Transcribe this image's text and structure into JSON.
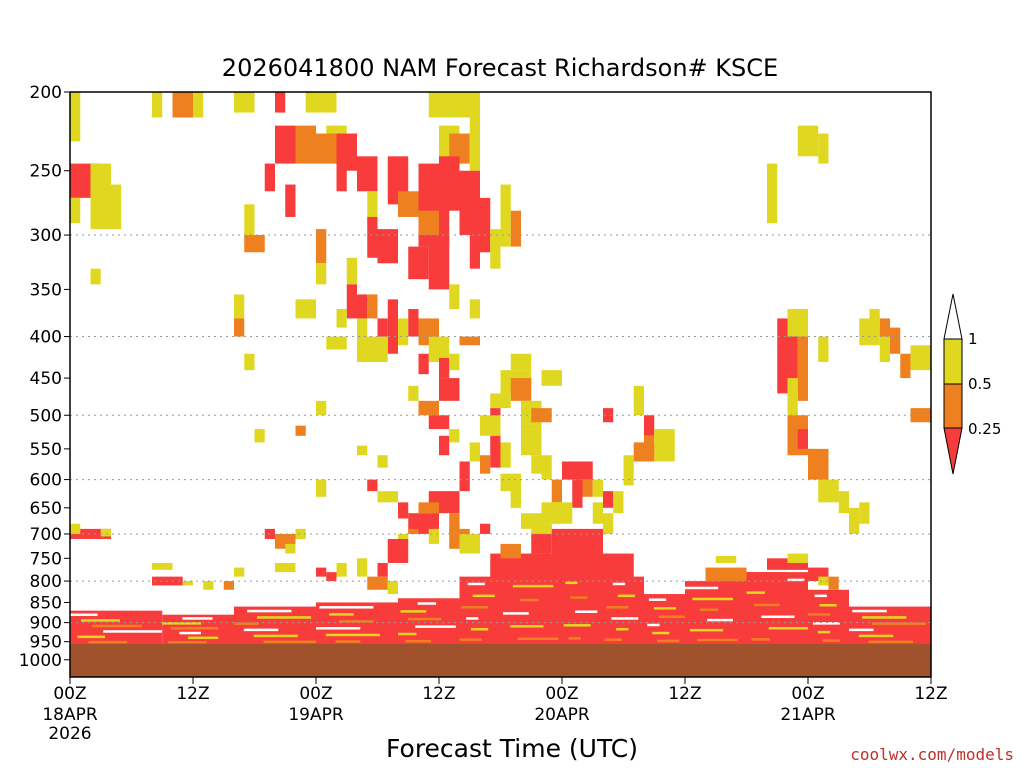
{
  "chart_data": {
    "type": "heatmap",
    "title": "2026041800 NAM Forecast Richardson# KSCE",
    "xlabel": "Forecast Time (UTC)",
    "ylabel": "",
    "credit": "coolwx.com/models",
    "x_range_hours": [
      0,
      84
    ],
    "x_ticks": [
      {
        "hour": 0,
        "label": "00Z",
        "date": "18APR",
        "year": "2026"
      },
      {
        "hour": 12,
        "label": "12Z",
        "date": "",
        "year": ""
      },
      {
        "hour": 24,
        "label": "00Z",
        "date": "19APR",
        "year": ""
      },
      {
        "hour": 36,
        "label": "12Z",
        "date": "",
        "year": ""
      },
      {
        "hour": 48,
        "label": "00Z",
        "date": "20APR",
        "year": ""
      },
      {
        "hour": 60,
        "label": "12Z",
        "date": "",
        "year": ""
      },
      {
        "hour": 72,
        "label": "00Z",
        "date": "21APR",
        "year": ""
      },
      {
        "hour": 84,
        "label": "12Z",
        "date": "",
        "year": ""
      }
    ],
    "y_axis": "pressure_hPa_log",
    "y_range": [
      1050,
      200
    ],
    "y_ticks": [
      200,
      250,
      300,
      350,
      400,
      450,
      500,
      550,
      600,
      650,
      700,
      750,
      800,
      850,
      900,
      950,
      1000
    ],
    "y_gridlines": [
      300,
      400,
      500,
      600,
      700,
      800,
      900
    ],
    "grid_style": "dotted",
    "legend": {
      "placement": "right",
      "thresholds": [
        "1",
        "0.5",
        "0.25"
      ],
      "classes": [
        {
          "name": "0.5-1",
          "color": "#e0d820"
        },
        {
          "name": "0.25-0.5",
          "color": "#ee8020"
        },
        {
          "name": "<0.25",
          "color": "#f83c3c"
        }
      ],
      "upper_arrow_color": "#ffffff"
    },
    "ground_pressure": 955,
    "ground_color": "#a0522d",
    "class_colors": {
      "Y": "#e0d820",
      "O": "#ee8020",
      "R": "#f83c3c"
    },
    "cells": [
      [
        "Y",
        0,
        1,
        200,
        230
      ],
      [
        "Y",
        8,
        9,
        200,
        215
      ],
      [
        "O",
        10,
        12,
        200,
        215
      ],
      [
        "Y",
        12,
        13,
        200,
        215
      ],
      [
        "Y",
        16,
        18,
        200,
        212
      ],
      [
        "R",
        20,
        21,
        200,
        212
      ],
      [
        "Y",
        23,
        24,
        200,
        212
      ],
      [
        "Y",
        24,
        26,
        200,
        212
      ],
      [
        "Y",
        35,
        40,
        200,
        215
      ],
      [
        "R",
        20,
        22,
        220,
        245
      ],
      [
        "O",
        22,
        24,
        220,
        245
      ],
      [
        "Y",
        25,
        27,
        220,
        245
      ],
      [
        "R",
        26,
        28,
        225,
        250
      ],
      [
        "O",
        24,
        26,
        225,
        245
      ],
      [
        "Y",
        36,
        38,
        220,
        245
      ],
      [
        "O",
        37,
        39,
        225,
        245
      ],
      [
        "Y",
        39,
        40,
        215,
        250
      ],
      [
        "Y",
        71,
        73,
        220,
        240
      ],
      [
        "Y",
        73,
        74,
        225,
        245
      ],
      [
        "R",
        0,
        3,
        245,
        270
      ],
      [
        "Y",
        0,
        1,
        270,
        290
      ],
      [
        "Y",
        2,
        4,
        245,
        295
      ],
      [
        "Y",
        4,
        5,
        260,
        295
      ],
      [
        "R",
        19,
        20,
        245,
        265
      ],
      [
        "R",
        28,
        30,
        240,
        265
      ],
      [
        "Y",
        29,
        30,
        265,
        290
      ],
      [
        "R",
        31,
        33,
        240,
        275
      ],
      [
        "R",
        26,
        27,
        245,
        265
      ],
      [
        "R",
        34,
        37,
        245,
        310
      ],
      [
        "O",
        32,
        34,
        265,
        285
      ],
      [
        "R",
        29,
        30,
        285,
        320
      ],
      [
        "R",
        30,
        32,
        295,
        325
      ],
      [
        "R",
        33,
        35,
        310,
        340
      ],
      [
        "O",
        34,
        36,
        280,
        300
      ],
      [
        "R",
        35,
        37,
        300,
        350
      ],
      [
        "R",
        36,
        38,
        240,
        280
      ],
      [
        "R",
        38,
        40,
        250,
        300
      ],
      [
        "R",
        40,
        41,
        270,
        315
      ],
      [
        "Y",
        42,
        43,
        260,
        310
      ],
      [
        "O",
        43,
        44,
        280,
        310
      ],
      [
        "R",
        39,
        40,
        300,
        330
      ],
      [
        "Y",
        41,
        42,
        295,
        330
      ],
      [
        "Y",
        68,
        69,
        245,
        290
      ],
      [
        "O",
        17,
        19,
        300,
        315
      ],
      [
        "Y",
        17,
        18,
        275,
        300
      ],
      [
        "R",
        21,
        22,
        260,
        285
      ],
      [
        "O",
        24,
        25,
        295,
        325
      ],
      [
        "Y",
        24,
        25,
        325,
        345
      ],
      [
        "Y",
        27,
        28,
        320,
        345
      ],
      [
        "R",
        27,
        28,
        345,
        380
      ],
      [
        "Y",
        28,
        29,
        380,
        400
      ],
      [
        "Y",
        2,
        3,
        330,
        345
      ],
      [
        "Y",
        16,
        17,
        355,
        380
      ],
      [
        "O",
        16,
        17,
        380,
        400
      ],
      [
        "Y",
        22,
        24,
        360,
        380
      ],
      [
        "Y",
        26,
        27,
        370,
        390
      ],
      [
        "R",
        28,
        29,
        355,
        380
      ],
      [
        "O",
        29,
        30,
        355,
        380
      ],
      [
        "R",
        30,
        31,
        380,
        400
      ],
      [
        "R",
        31,
        32,
        360,
        420
      ],
      [
        "Y",
        32,
        33,
        380,
        410
      ],
      [
        "R",
        33,
        34,
        370,
        400
      ],
      [
        "O",
        34,
        36,
        380,
        410
      ],
      [
        "Y",
        35,
        37,
        400,
        430
      ],
      [
        "Y",
        37,
        38,
        345,
        370
      ],
      [
        "Y",
        39,
        40,
        360,
        380
      ],
      [
        "O",
        38,
        40,
        400,
        410
      ],
      [
        "R",
        34,
        35,
        420,
        445
      ],
      [
        "R",
        36,
        37,
        425,
        450
      ],
      [
        "Y",
        37,
        38,
        420,
        440
      ],
      [
        "Y",
        17,
        18,
        420,
        440
      ],
      [
        "Y",
        25,
        27,
        400,
        415
      ],
      [
        "Y",
        28,
        31,
        400,
        430
      ],
      [
        "R",
        36,
        38,
        450,
        480
      ],
      [
        "R",
        35,
        36,
        490,
        500
      ],
      [
        "O",
        34,
        36,
        480,
        500
      ],
      [
        "Y",
        33,
        34,
        460,
        480
      ],
      [
        "R",
        35,
        37,
        500,
        520
      ],
      [
        "R",
        36,
        37,
        530,
        560
      ],
      [
        "Y",
        37,
        38,
        520,
        540
      ],
      [
        "Y",
        24,
        25,
        480,
        500
      ],
      [
        "O",
        22,
        23,
        515,
        530
      ],
      [
        "Y",
        18,
        19,
        520,
        540
      ],
      [
        "Y",
        43,
        45,
        420,
        440
      ],
      [
        "Y",
        42,
        45,
        440,
        470
      ],
      [
        "O",
        43,
        45,
        450,
        480
      ],
      [
        "Y",
        41,
        43,
        470,
        490
      ],
      [
        "R",
        41,
        42,
        490,
        510
      ],
      [
        "Y",
        44,
        46,
        480,
        520
      ],
      [
        "O",
        45,
        47,
        490,
        510
      ],
      [
        "Y",
        46,
        48,
        440,
        460
      ],
      [
        "Y",
        40,
        42,
        500,
        530
      ],
      [
        "R",
        41,
        42,
        530,
        580
      ],
      [
        "O",
        40,
        41,
        560,
        590
      ],
      [
        "Y",
        39,
        40,
        540,
        570
      ],
      [
        "R",
        38,
        39,
        570,
        620
      ],
      [
        "Y",
        42,
        43,
        540,
        580
      ],
      [
        "Y",
        42,
        44,
        590,
        620
      ],
      [
        "Y",
        43,
        44,
        620,
        650
      ],
      [
        "Y",
        44,
        46,
        520,
        560
      ],
      [
        "Y",
        45,
        46,
        560,
        590
      ],
      [
        "Y",
        46,
        47,
        560,
        600
      ],
      [
        "Y",
        43,
        44,
        610,
        650
      ],
      [
        "R",
        52,
        53,
        490,
        510
      ],
      [
        "Y",
        55,
        56,
        460,
        500
      ],
      [
        "R",
        56,
        57,
        500,
        530
      ],
      [
        "O",
        56,
        57,
        530,
        560
      ],
      [
        "Y",
        57,
        59,
        520,
        570
      ],
      [
        "Y",
        55,
        56,
        540,
        560
      ],
      [
        "Y",
        54,
        55,
        560,
        590
      ],
      [
        "R",
        48,
        51,
        570,
        600
      ],
      [
        "R",
        49,
        50,
        600,
        650
      ],
      [
        "O",
        50,
        51,
        600,
        630
      ],
      [
        "Y",
        51,
        52,
        600,
        630
      ],
      [
        "R",
        52,
        53,
        620,
        650
      ],
      [
        "Y",
        51,
        52,
        640,
        680
      ],
      [
        "O",
        47,
        48,
        600,
        640
      ],
      [
        "Y",
        47,
        48,
        640,
        680
      ],
      [
        "Y",
        46,
        47,
        680,
        700
      ],
      [
        "R",
        35,
        38,
        620,
        660
      ],
      [
        "O",
        37,
        38,
        660,
        700
      ],
      [
        "R",
        33,
        36,
        660,
        700
      ],
      [
        "O",
        34,
        36,
        640,
        660
      ],
      [
        "Y",
        28,
        29,
        545,
        560
      ],
      [
        "Y",
        30,
        31,
        560,
        580
      ],
      [
        "R",
        29,
        30,
        600,
        620
      ],
      [
        "Y",
        30,
        32,
        620,
        640
      ],
      [
        "R",
        32,
        33,
        640,
        670
      ],
      [
        "O",
        33,
        34,
        690,
        700
      ],
      [
        "Y",
        32,
        33,
        700,
        720
      ],
      [
        "Y",
        35,
        36,
        690,
        720
      ],
      [
        "O",
        37,
        39,
        690,
        730
      ],
      [
        "Y",
        38,
        40,
        700,
        740
      ],
      [
        "R",
        40,
        41,
        680,
        700
      ],
      [
        "Y",
        24,
        25,
        600,
        630
      ],
      [
        "O",
        20,
        22,
        700,
        730
      ],
      [
        "Y",
        21,
        22,
        720,
        740
      ],
      [
        "R",
        19,
        20,
        690,
        710
      ],
      [
        "Y",
        22,
        23,
        690,
        710
      ],
      [
        "R",
        31,
        33,
        710,
        760
      ],
      [
        "R",
        30,
        31,
        760,
        790
      ],
      [
        "Y",
        28,
        29,
        750,
        790
      ],
      [
        "Y",
        26,
        27,
        760,
        790
      ],
      [
        "R",
        25,
        26,
        780,
        800
      ],
      [
        "O",
        29,
        31,
        790,
        820
      ],
      [
        "Y",
        31,
        32,
        800,
        830
      ],
      [
        "R",
        0,
        4,
        690,
        710
      ],
      [
        "Y",
        3,
        4,
        690,
        705
      ],
      [
        "Y",
        0,
        1,
        680,
        700
      ],
      [
        "Y",
        8,
        10,
        760,
        775
      ],
      [
        "R",
        8,
        11,
        790,
        810
      ],
      [
        "Y",
        11,
        12,
        800,
        810
      ],
      [
        "Y",
        13,
        14,
        800,
        820
      ],
      [
        "O",
        15,
        16,
        800,
        820
      ],
      [
        "Y",
        16,
        17,
        770,
        790
      ],
      [
        "Y",
        20,
        22,
        760,
        780
      ],
      [
        "R",
        24,
        25,
        770,
        790
      ],
      [
        "O",
        62,
        66,
        770,
        800
      ],
      [
        "R",
        66,
        70,
        780,
        810
      ],
      [
        "Y",
        63,
        65,
        745,
        760
      ],
      [
        "R",
        68,
        72,
        750,
        775
      ],
      [
        "Y",
        70,
        72,
        740,
        760
      ],
      [
        "R",
        72,
        74,
        770,
        800
      ],
      [
        "Y",
        73,
        74,
        790,
        810
      ],
      [
        "O",
        74,
        75,
        790,
        820
      ],
      [
        "R",
        69,
        71,
        380,
        470
      ],
      [
        "O",
        71,
        72,
        400,
        480
      ],
      [
        "Y",
        70,
        71,
        450,
        500
      ],
      [
        "O",
        70,
        72,
        500,
        560
      ],
      [
        "R",
        71,
        72,
        520,
        550
      ],
      [
        "Y",
        72,
        73,
        550,
        600
      ],
      [
        "O",
        72,
        74,
        550,
        600
      ],
      [
        "Y",
        73,
        75,
        600,
        640
      ],
      [
        "Y",
        75,
        76,
        620,
        660
      ],
      [
        "Y",
        77,
        78,
        640,
        680
      ],
      [
        "Y",
        76,
        77,
        650,
        700
      ],
      [
        "Y",
        70,
        72,
        370,
        400
      ],
      [
        "Y",
        73,
        74,
        400,
        430
      ],
      [
        "Y",
        77,
        79,
        380,
        410
      ],
      [
        "O",
        79,
        80,
        380,
        400
      ],
      [
        "Y",
        78,
        79,
        370,
        390
      ],
      [
        "O",
        80,
        81,
        390,
        420
      ],
      [
        "Y",
        79,
        80,
        400,
        430
      ],
      [
        "O",
        81,
        82,
        420,
        450
      ],
      [
        "Y",
        82,
        84,
        410,
        440
      ],
      [
        "O",
        82,
        84,
        490,
        510
      ],
      [
        "O",
        55,
        57,
        540,
        570
      ],
      [
        "Y",
        54,
        55,
        580,
        610
      ],
      [
        "Y",
        53,
        54,
        620,
        660
      ],
      [
        "Y",
        52,
        53,
        660,
        700
      ],
      [
        "Y",
        46,
        48,
        640,
        680
      ],
      [
        "Y",
        48,
        49,
        640,
        680
      ],
      [
        "Y",
        44,
        46,
        660,
        690
      ],
      [
        "Y",
        45,
        47,
        680,
        720
      ],
      [
        "R",
        45,
        47,
        700,
        740
      ],
      [
        "R",
        47,
        52,
        690,
        760
      ],
      [
        "R",
        46,
        55,
        740,
        800
      ],
      [
        "R",
        41,
        46,
        740,
        800
      ],
      [
        "O",
        42,
        44,
        720,
        750
      ]
    ],
    "low_bands": [
      {
        "hour_start": 0,
        "hour_end": 9,
        "pressure_top": 870
      },
      {
        "hour_start": 9,
        "hour_end": 16,
        "pressure_top": 880
      },
      {
        "hour_start": 16,
        "hour_end": 24,
        "pressure_top": 860
      },
      {
        "hour_start": 24,
        "hour_end": 32,
        "pressure_top": 850
      },
      {
        "hour_start": 32,
        "hour_end": 38,
        "pressure_top": 840
      },
      {
        "hour_start": 38,
        "hour_end": 42,
        "pressure_top": 790
      },
      {
        "hour_start": 42,
        "hour_end": 48,
        "pressure_top": 760
      },
      {
        "hour_start": 48,
        "hour_end": 52,
        "pressure_top": 750
      },
      {
        "hour_start": 52,
        "hour_end": 56,
        "pressure_top": 790
      },
      {
        "hour_start": 56,
        "hour_end": 60,
        "pressure_top": 830
      },
      {
        "hour_start": 60,
        "hour_end": 66,
        "pressure_top": 800
      },
      {
        "hour_start": 66,
        "hour_end": 72,
        "pressure_top": 780
      },
      {
        "hour_start": 72,
        "hour_end": 76,
        "pressure_top": 820
      },
      {
        "hour_start": 76,
        "hour_end": 84,
        "pressure_top": 860
      }
    ]
  }
}
